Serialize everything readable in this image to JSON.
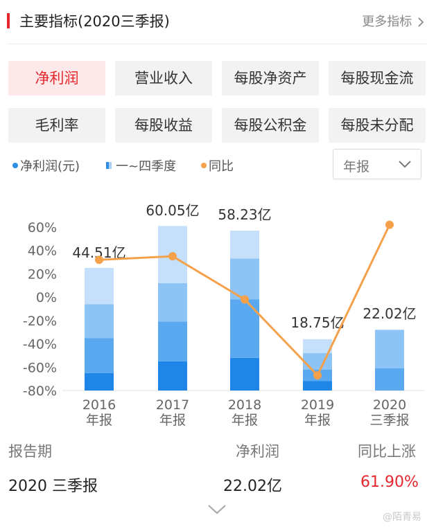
{
  "header": {
    "title": "主要指标(2020三季报)",
    "more": "更多指标"
  },
  "tabs": [
    {
      "label": "净利润",
      "active": true
    },
    {
      "label": "营业收入",
      "active": false
    },
    {
      "label": "每股净资产",
      "active": false
    },
    {
      "label": "每股现金流",
      "active": false
    },
    {
      "label": "毛利率",
      "active": false
    },
    {
      "label": "每股收益",
      "active": false
    },
    {
      "label": "每股公积金",
      "active": false
    },
    {
      "label": "每股未分配",
      "active": false
    }
  ],
  "legend": {
    "net_profit": "净利润(元)",
    "quarters": "一~四季度",
    "yoy": "同比"
  },
  "select": {
    "value": "年报"
  },
  "colors": {
    "accent": "#e5262d",
    "line": "#f5a04a",
    "q1": "#1f86e8",
    "q2": "#5aa9f0",
    "q3": "#8ec4f5",
    "q4": "#c5e0fa"
  },
  "chart_data": {
    "type": "bar",
    "categories": [
      "2016\n年报",
      "2017\n年报",
      "2018\n年报",
      "2019\n年报",
      "2020\n三季报"
    ],
    "y_ticks": [
      "60%",
      "40%",
      "20%",
      "0%",
      "-20%",
      "-40%",
      "-60%",
      "-80%"
    ],
    "ylim": [
      -80,
      60
    ],
    "bar_labels": [
      "44.51亿",
      "60.05亿",
      "58.23亿",
      "18.75亿",
      "22.02亿"
    ],
    "net_profit_yi": [
      44.51,
      60.05,
      58.23,
      18.75,
      22.02
    ],
    "stack_levels": [
      [
        -65,
        -35,
        -6,
        25
      ],
      [
        -55,
        -21,
        12,
        61
      ],
      [
        -52,
        -2,
        33,
        57
      ],
      [
        -72,
        -62,
        -48,
        -36
      ],
      [
        -80,
        -61,
        -28,
        null
      ]
    ],
    "series": [
      {
        "name": "同比",
        "type": "line",
        "values": [
          32,
          35,
          -2,
          -67,
          62
        ]
      }
    ],
    "grid": false
  },
  "summary": {
    "headers": [
      "报告期",
      "净利润",
      "同比上涨"
    ],
    "row": [
      "2020 三季报",
      "22.02亿",
      "61.90%"
    ]
  },
  "watermark": "@陌青易"
}
